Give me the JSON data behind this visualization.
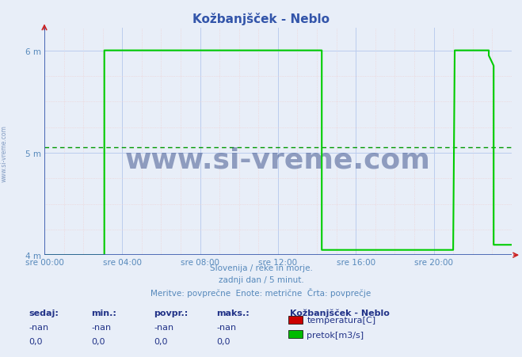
{
  "title": "Kožbanjšček - Neblo",
  "title_color": "#3355aa",
  "bg_color": "#e8eef8",
  "plot_bg_color": "#e8eef8",
  "grid_color_major": "#bbccee",
  "grid_color_minor": "#f0cccc",
  "xlabel_color": "#5588bb",
  "ylabel_color": "#5588bb",
  "axis_color": "#3355aa",
  "xlim_hours": [
    0,
    24
  ],
  "ylim": [
    4.0,
    6.22
  ],
  "yticks": [
    4,
    5,
    6
  ],
  "ytick_labels": [
    "4 m",
    "5 m",
    "6 m"
  ],
  "xtick_labels": [
    "sre 00:00",
    "sre 04:00",
    "sre 08:00",
    "sre 12:00",
    "sre 16:00",
    "sre 20:00"
  ],
  "xtick_hours": [
    0,
    4,
    8,
    12,
    16,
    20
  ],
  "subtitle_lines": [
    "Slovenija / reke in morje.",
    "zadnji dan / 5 minut.",
    "Meritve: povprečne  Enote: metrične  Črta: povprečje"
  ],
  "subtitle_color": "#5588bb",
  "table_header": [
    "sedaj:",
    "min.:",
    "povpr.:",
    "maks.:"
  ],
  "table_values_row1": [
    "-nan",
    "-nan",
    "-nan",
    "-nan"
  ],
  "table_values_row2": [
    "0,0",
    "0,0",
    "0,0",
    "0,0"
  ],
  "table_color": "#223388",
  "station_label": "Kožbanjšček - Neblo",
  "legend_items": [
    {
      "name": "temperatura[C]",
      "color": "#cc0000"
    },
    {
      "name": "pretok[m3/s]",
      "color": "#00bb00"
    }
  ],
  "series": [
    {
      "name": "temperatura[C]",
      "color": "#cc0000",
      "data_x": [],
      "data_y": []
    },
    {
      "name": "pretok[m3/s]",
      "color": "#00cc00",
      "data_x": [
        0,
        3.08,
        3.08,
        14.25,
        14.25,
        14.33,
        21.0,
        21.0,
        21.08,
        22.83,
        22.83,
        23.08,
        23.08,
        24
      ],
      "data_y": [
        4.0,
        4.0,
        6.0,
        6.0,
        4.05,
        4.05,
        4.05,
        4.05,
        6.0,
        6.0,
        5.95,
        5.85,
        4.1,
        4.1
      ]
    }
  ],
  "avg_line_y": 5.05,
  "avg_line_color": "#009900",
  "watermark": "www.si-vreme.com",
  "watermark_color": "#223a7a",
  "left_watermark": "www.si-vreme.com",
  "left_watermark_color": "#5577aa"
}
